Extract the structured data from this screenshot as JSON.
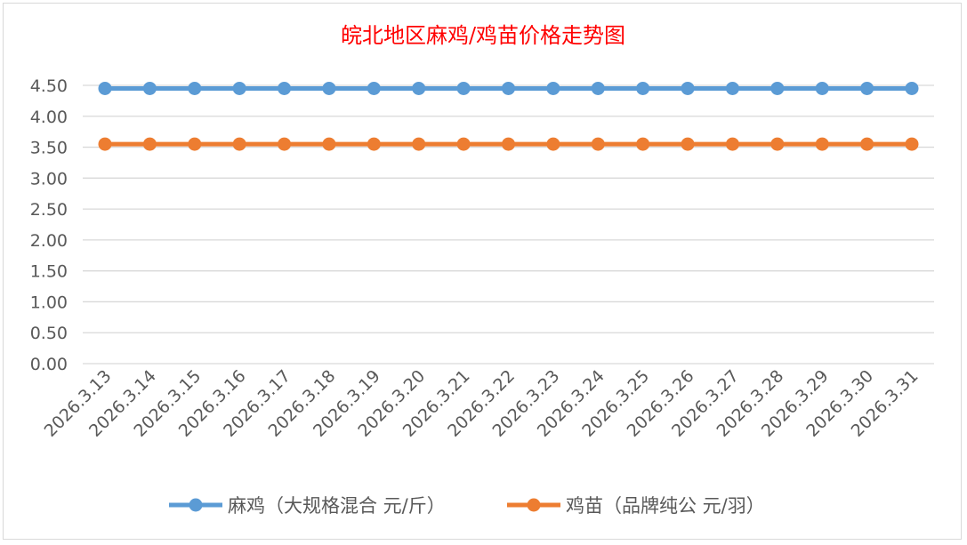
{
  "chart_data": {
    "type": "line",
    "title": "皖北地区麻鸡/鸡苗价格走势图",
    "title_color": "#ff0000",
    "xlabel": "",
    "ylabel": "",
    "ylim": [
      0,
      4.5
    ],
    "yticks": [
      "0.00",
      "0.50",
      "1.00",
      "1.50",
      "2.00",
      "2.50",
      "3.00",
      "3.50",
      "4.00",
      "4.50"
    ],
    "grid": true,
    "legend_position": "bottom",
    "categories": [
      "2026.3.13",
      "2026.3.14",
      "2026.3.15",
      "2026.3.16",
      "2026.3.17",
      "2026.3.18",
      "2026.3.19",
      "2026.3.20",
      "2026.3.21",
      "2026.3.22",
      "2026.3.23",
      "2026.3.24",
      "2026.3.25",
      "2026.3.26",
      "2026.3.27",
      "2026.3.28",
      "2026.3.29",
      "2026.3.30",
      "2026.3.31"
    ],
    "series": [
      {
        "name": "麻鸡（大规格混合 元/斤）",
        "color": "#5b9bd5",
        "values": [
          4.45,
          4.45,
          4.45,
          4.45,
          4.45,
          4.45,
          4.45,
          4.45,
          4.45,
          4.45,
          4.45,
          4.45,
          4.45,
          4.45,
          4.45,
          4.45,
          4.45,
          4.45,
          4.45
        ]
      },
      {
        "name": "鸡苗（品牌纯公 元/羽）",
        "color": "#ed7d31",
        "values": [
          3.55,
          3.55,
          3.55,
          3.55,
          3.55,
          3.55,
          3.55,
          3.55,
          3.55,
          3.55,
          3.55,
          3.55,
          3.55,
          3.55,
          3.55,
          3.55,
          3.55,
          3.55,
          3.55
        ]
      }
    ]
  }
}
